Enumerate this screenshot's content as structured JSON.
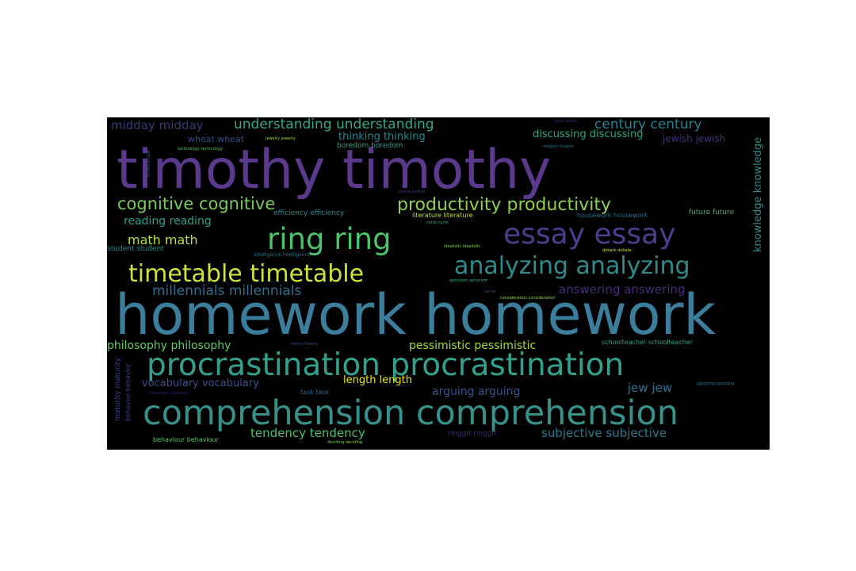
{
  "words": [
    {
      "text": "timothy timothy",
      "color": "#5b3a8e"
    },
    {
      "text": "homework homework",
      "color": "#3a7e9c"
    },
    {
      "text": "comprehension comprehension",
      "color": "#37918b"
    },
    {
      "text": "procrastination procrastination",
      "color": "#33a08d"
    },
    {
      "text": "ring ring",
      "color": "#4cc26c"
    },
    {
      "text": "essay essay",
      "color": "#4d3d8a"
    },
    {
      "text": "analyzing analyzing",
      "color": "#2f8c8a"
    },
    {
      "text": "timetable timetable",
      "color": "#cfe23a"
    },
    {
      "text": "productivity productivity",
      "color": "#8fd14f"
    },
    {
      "text": "cognitive cognitive",
      "color": "#7acc5a"
    },
    {
      "text": "millennials millennials",
      "color": "#2e6f8e"
    },
    {
      "text": "understanding understanding",
      "color": "#36a88a"
    },
    {
      "text": "century century",
      "color": "#26828e"
    },
    {
      "text": "midday midday",
      "color": "#3a3a74"
    },
    {
      "text": "reading reading",
      "color": "#2a9f8a"
    },
    {
      "text": "math math",
      "color": "#b7de3a"
    },
    {
      "text": "answering answering",
      "color": "#4a2a7a"
    },
    {
      "text": "philosophy philosophy",
      "color": "#66c86a"
    },
    {
      "text": "pessimistic pessimistic",
      "color": "#a5db36"
    },
    {
      "text": "vocabulary vocabulary",
      "color": "#3e4c8a"
    },
    {
      "text": "length length",
      "color": "#e6e419"
    },
    {
      "text": "arguing arguing",
      "color": "#3b528b"
    },
    {
      "text": "jew jew",
      "color": "#2c728e"
    },
    {
      "text": "tendency tendency",
      "color": "#4ac16d"
    },
    {
      "text": "subjective subjective",
      "color": "#2a788e"
    },
    {
      "text": "thinking thinking",
      "color": "#23888e"
    },
    {
      "text": "discussing discussing",
      "color": "#22a884"
    },
    {
      "text": "jewish jewish",
      "color": "#46307a"
    },
    {
      "text": "wheat wheat",
      "color": "#3e4a89"
    },
    {
      "text": "boredom boredom",
      "color": "#3f9a8a"
    },
    {
      "text": "efficiency efficiency",
      "color": "#2c8a8a"
    },
    {
      "text": "literature literature",
      "color": "#c7df3a"
    },
    {
      "text": "housework housework",
      "color": "#2a6d8e"
    },
    {
      "text": "future future",
      "color": "#5aa07a"
    },
    {
      "text": "student student",
      "color": "#1f8f8b"
    },
    {
      "text": "intelligence intelligence",
      "color": "#2a788e"
    },
    {
      "text": "idealistic idealistic",
      "color": "#8bd646"
    },
    {
      "text": "debate debate",
      "color": "#c9e22a"
    },
    {
      "text": "aphorism aphorism",
      "color": "#35b779"
    },
    {
      "text": "consideration consideration",
      "color": "#9ad84a"
    },
    {
      "text": "tie tie",
      "color": "#3b528b"
    },
    {
      "text": "schoolteacher schoolteacher",
      "color": "#37a08a"
    },
    {
      "text": "task task",
      "color": "#31688e"
    },
    {
      "text": "ringgit ringgit",
      "color": "#3b2f6b"
    },
    {
      "text": "behaviour behaviour",
      "color": "#5ac864"
    },
    {
      "text": "deciding deciding",
      "color": "#7ad151"
    },
    {
      "text": "spending spending",
      "color": "#2a788e"
    },
    {
      "text": "challenge challenge",
      "color": "#2d1e6a"
    },
    {
      "text": "theory theory",
      "color": "#3b528b"
    },
    {
      "text": "technology technology",
      "color": "#5ac864"
    },
    {
      "text": "jewelry jewelry",
      "color": "#a0da39"
    },
    {
      "text": "cycle cycle",
      "color": "#2ab07f"
    },
    {
      "text": "religion religion",
      "color": "#2f7b8e"
    },
    {
      "text": "jesus jesus",
      "color": "#3b2f7b"
    },
    {
      "text": "justice justice",
      "color": "#3b3a7b"
    },
    {
      "text": "knowledge knowledge",
      "color": "#2f8a8a"
    },
    {
      "text": "maturity maturity",
      "color": "#3b3f8a"
    },
    {
      "text": "behavior behavior",
      "color": "#3b3f8a"
    },
    {
      "text": "school school",
      "color": "#2e5a8a"
    }
  ]
}
